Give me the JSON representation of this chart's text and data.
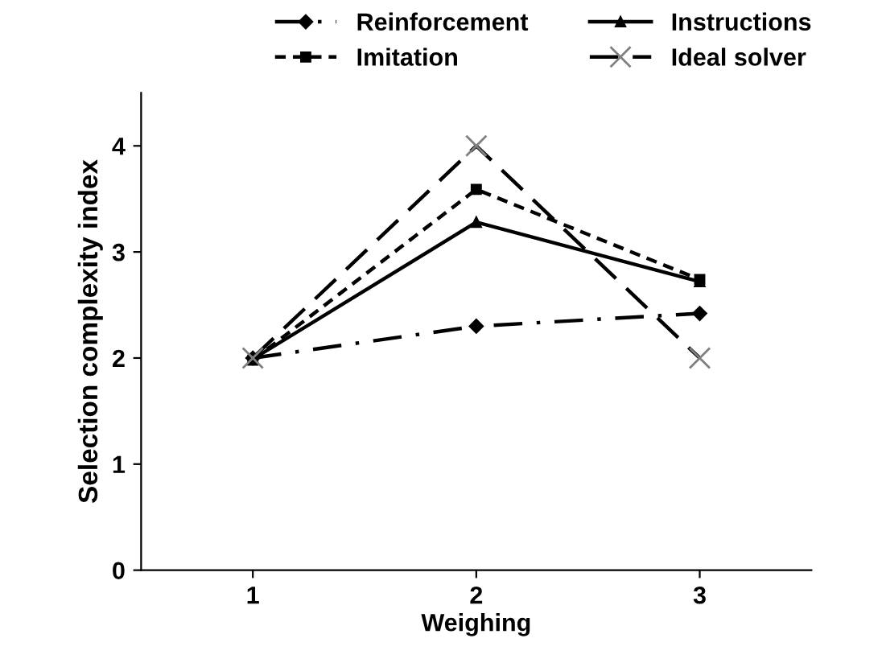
{
  "chart_data": {
    "type": "line",
    "xlabel": "Weighing",
    "ylabel": "Selection complexity index",
    "x": [
      1,
      2,
      3
    ],
    "xlim": [
      0.5,
      3.5
    ],
    "xticks": [
      1,
      2,
      3
    ],
    "ylim": [
      0,
      4.5
    ],
    "yticks": [
      0,
      1,
      2,
      3,
      4
    ],
    "grid": false,
    "legend": "top",
    "series": [
      {
        "name": "Reinforcement",
        "color": "#000000",
        "marker": "diamond",
        "line_style": "dashdot",
        "values": [
          2.0,
          2.3,
          2.42
        ]
      },
      {
        "name": "Imitation",
        "color": "#000000",
        "marker": "square",
        "line_style": "dotted",
        "values": [
          1.98,
          3.59,
          2.74
        ]
      },
      {
        "name": "Instructions",
        "color": "#000000",
        "marker": "triangle",
        "line_style": "solid",
        "values": [
          1.99,
          3.28,
          2.72
        ]
      },
      {
        "name": "Ideal solver",
        "color": "#000000",
        "marker": "cross",
        "line_style": "dashed",
        "values": [
          2.0,
          4.0,
          2.0
        ]
      }
    ]
  }
}
